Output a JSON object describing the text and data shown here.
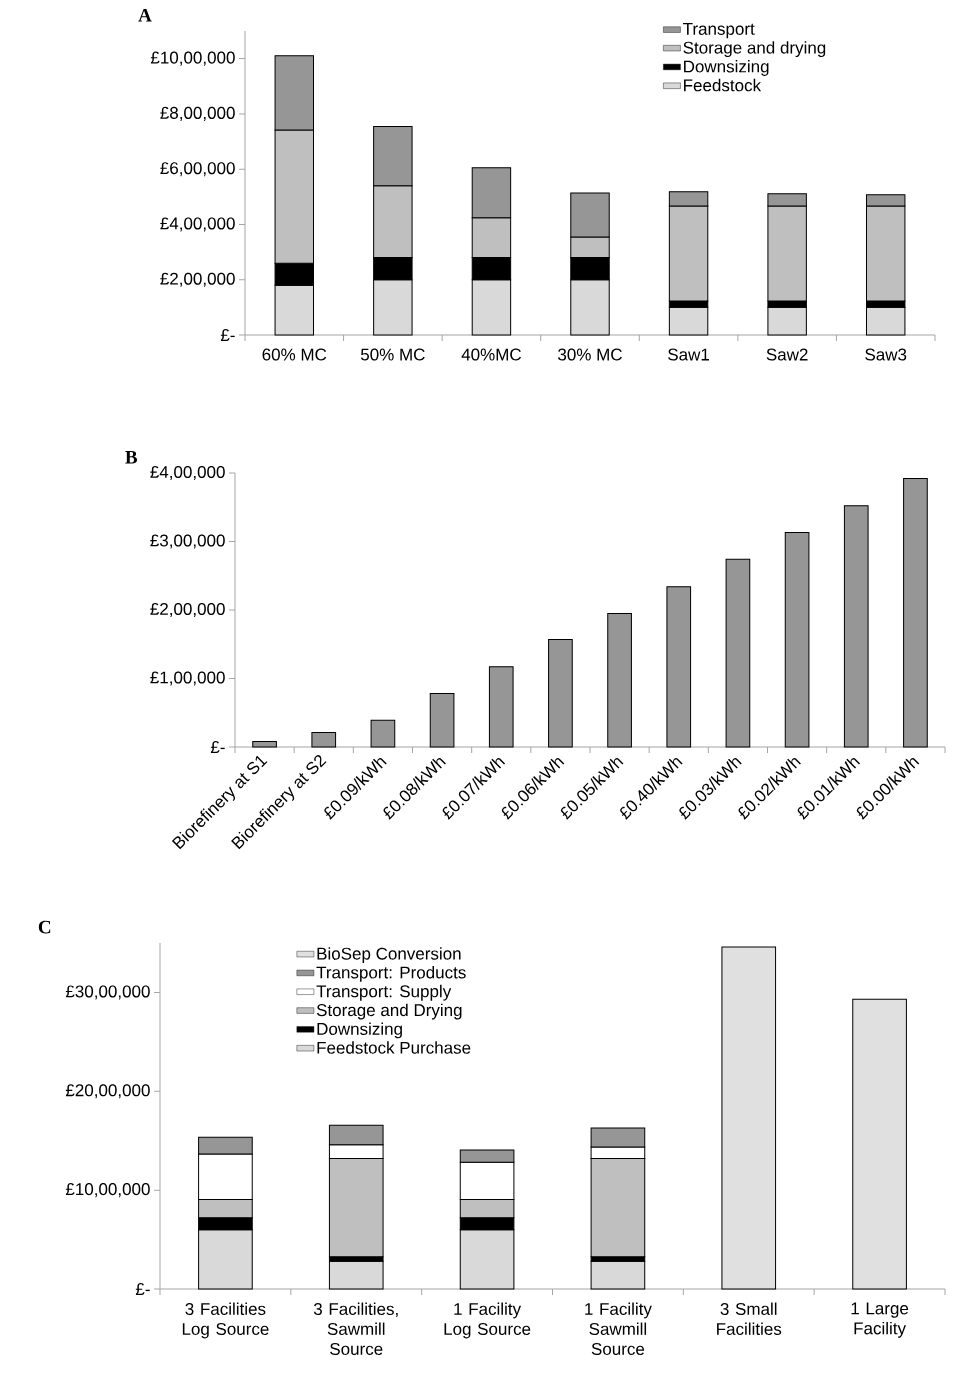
{
  "chart_data": [
    {
      "type": "bar",
      "title": "A",
      "stacked": true,
      "legend": "top right",
      "categories": [
        "60% MC",
        "50% MC",
        "40%MC",
        "30% MC",
        "Saw1",
        "Saw2",
        "Saw3"
      ],
      "series": [
        {
          "name": "Feedstock",
          "color": "#d9d9d9",
          "values": [
            180000,
            200000,
            200000,
            200000,
            100000,
            100000,
            100000
          ]
        },
        {
          "name": "Downsizing",
          "color": "#000000",
          "values": [
            80000,
            80000,
            80000,
            80000,
            23000,
            23000,
            23000
          ]
        },
        {
          "name": "Storage and drying",
          "color": "#bfbfbf",
          "values": [
            482000,
            260000,
            144000,
            75000,
            344000,
            344000,
            344000
          ]
        },
        {
          "name": "Transport",
          "color": "#969696",
          "values": [
            268000,
            214000,
            181000,
            159000,
            51000,
            44000,
            40000
          ]
        }
      ],
      "ylim": [
        0,
        1100000
      ],
      "yticks": [
        {
          "value": 0,
          "label": "£-"
        },
        {
          "value": 200000,
          "label": "£2,00,000"
        },
        {
          "value": 400000,
          "label": "£4,00,000"
        },
        {
          "value": 600000,
          "label": "£6,00,000"
        },
        {
          "value": 800000,
          "label": "£8,00,000"
        },
        {
          "value": 1000000,
          "label": "£10,00,000"
        }
      ]
    },
    {
      "type": "bar",
      "title": "B",
      "categories": [
        "Biorefinery at S1",
        "Biorefinery at S2",
        "£0.09/kWh",
        "£0.08/kWh",
        "£0.07/kWh",
        "£0.06/kWh",
        "£0.05/kWh",
        "£0.40/kWh",
        "£0.03/kWh",
        "£0.02/kWh",
        "£0.01/kWh",
        "£0.00/kWh"
      ],
      "values": [
        8000,
        21000,
        39000,
        78000,
        117000,
        157000,
        195000,
        234000,
        274000,
        313000,
        352000,
        392000
      ],
      "color": "#969696",
      "ylim": [
        0,
        400000
      ],
      "yticks": [
        {
          "value": 0,
          "label": "£-"
        },
        {
          "value": 100000,
          "label": "£1,00,000"
        },
        {
          "value": 200000,
          "label": "£2,00,000"
        },
        {
          "value": 300000,
          "label": "£3,00,000"
        },
        {
          "value": 400000,
          "label": "£4,00,000"
        }
      ]
    },
    {
      "type": "bar",
      "title": "C",
      "stacked": true,
      "legend": "top left",
      "categories": [
        "3 Facilities Log Source",
        "3 Facilities, Sawmill Source",
        "1 Facility Log Source",
        "1 Facility Sawmill Source",
        "3 Small Facilities",
        "1 Large Facility"
      ],
      "series": [
        {
          "name": "Feedstock Purchase",
          "color": "#d9d9d9",
          "values": [
            600000,
            280000,
            600000,
            280000,
            null,
            null
          ]
        },
        {
          "name": "Downsizing",
          "color": "#000000",
          "values": [
            120000,
            45000,
            120000,
            45000,
            null,
            null
          ]
        },
        {
          "name": "Storage and Drying",
          "color": "#bfbfbf",
          "values": [
            185000,
            994000,
            185000,
            994000,
            null,
            null
          ]
        },
        {
          "name": "Transport: Supply",
          "color": "#ffffff",
          "values": [
            461000,
            141000,
            377000,
            118000,
            null,
            null
          ]
        },
        {
          "name": "Transport: Products",
          "color": "#969696",
          "values": [
            169000,
            196000,
            123000,
            191000,
            null,
            null
          ]
        },
        {
          "name": "BioSep Conversion",
          "color": "#e0e0e0",
          "values": [
            null,
            null,
            null,
            null,
            3460000,
            2930000
          ]
        }
      ],
      "ylim": [
        0,
        3500000
      ],
      "yticks": [
        {
          "value": 0,
          "label": "£-"
        },
        {
          "value": 1000000,
          "label": "£10,00,000"
        },
        {
          "value": 2000000,
          "label": "£20,00,000"
        },
        {
          "value": 3000000,
          "label": "£30,00,000"
        }
      ]
    }
  ]
}
